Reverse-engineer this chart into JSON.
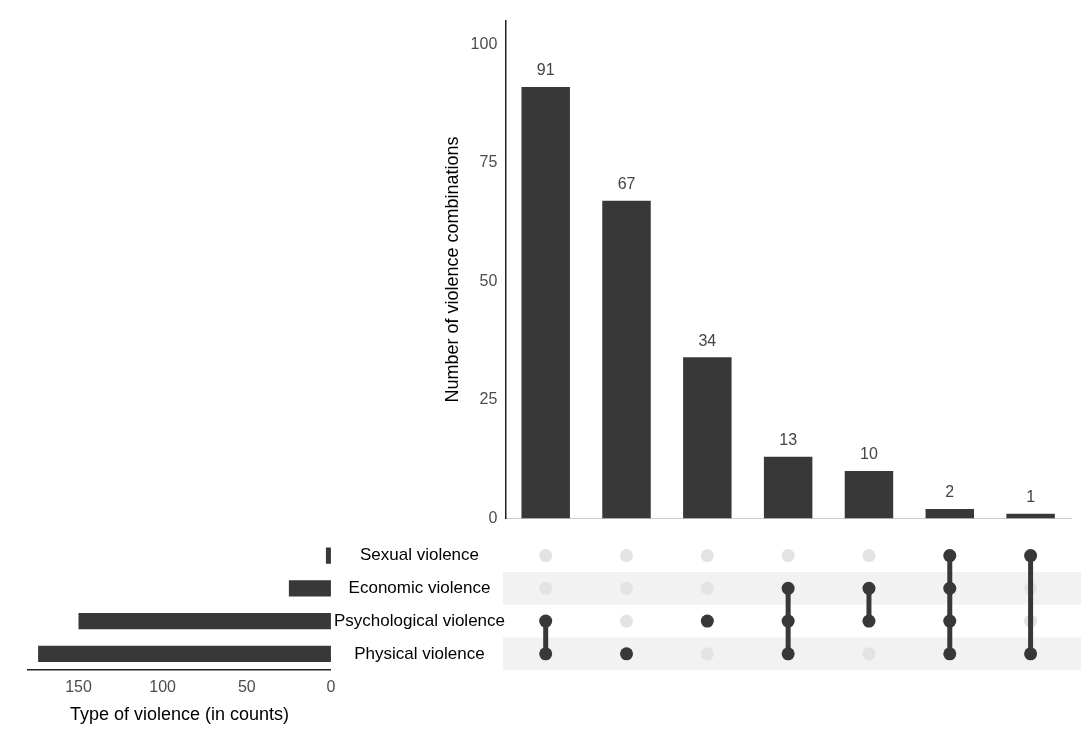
{
  "chart_data": [
    {
      "type": "bar",
      "ylabel": "Number of violence combinations",
      "categories": [
        null,
        null,
        null,
        null,
        null,
        null,
        null
      ],
      "values": [
        91,
        67,
        34,
        13,
        10,
        2,
        1
      ],
      "color": "#383838",
      "ylim": [
        0,
        105
      ],
      "yticks": [
        0,
        25,
        50,
        75,
        100
      ],
      "data_labels": true
    },
    {
      "type": "bar",
      "orientation": "horizontal",
      "xlabel": "Type of violence (in counts)",
      "categories": [
        "Sexual violence",
        "Economic violence",
        "Psychological violence",
        "Physical violence"
      ],
      "values": [
        3,
        25,
        150,
        174
      ],
      "color": "#383838",
      "xlim": [
        180,
        0
      ],
      "xticks": [
        150,
        100,
        50,
        0
      ]
    }
  ]
}
